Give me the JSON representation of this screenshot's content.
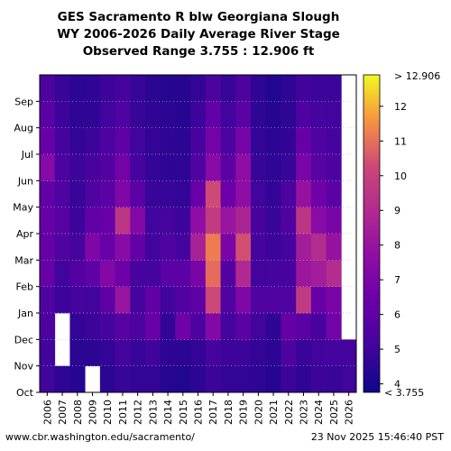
{
  "chart_data": {
    "type": "heatmap",
    "title": "GES Sacramento R blw Georgiana Slough",
    "subtitle": "WY 2006-2026 Daily Average River Stage",
    "range_label": "Observed Range 3.755 : 12.906 ft",
    "x_categories": [
      "2006",
      "2007",
      "2008",
      "2009",
      "2010",
      "2011",
      "2012",
      "2013",
      "2014",
      "2015",
      "2016",
      "2017",
      "2018",
      "2019",
      "2020",
      "2021",
      "2022",
      "2023",
      "2024",
      "2025",
      "2026"
    ],
    "y_ticks": [
      "Oct",
      "Nov",
      "Dec",
      "Jan",
      "Feb",
      "Mar",
      "Apr",
      "May",
      "Jun",
      "Jul",
      "Aug",
      "Sep"
    ],
    "colorbar": {
      "min": 3.755,
      "max": 12.906,
      "ticks": [
        4,
        5,
        6,
        7,
        8,
        9,
        10,
        11,
        12
      ],
      "top_label": "> 12.906",
      "bottom_label": "< 3.755",
      "colormap": "plasma"
    },
    "grid": "dotted horizontal at month starts",
    "monthly_values_oct_to_sep": [
      [
        4.9,
        4.9,
        5.2,
        5.3,
        6.0,
        5.9,
        6.0,
        5.8,
        6.9,
        6.0,
        5.6,
        5.2
      ],
      [
        4.5,
        null,
        null,
        4.8,
        4.9,
        5.3,
        5.5,
        5.3,
        5.2,
        5.0,
        4.8,
        4.7
      ],
      [
        4.3,
        4.4,
        4.6,
        5.0,
        5.4,
        5.0,
        4.8,
        4.7,
        4.8,
        4.6,
        4.5,
        4.4
      ],
      [
        null,
        4.4,
        4.8,
        4.9,
        5.7,
        6.7,
        5.8,
        5.3,
        5.1,
        4.8,
        4.5,
        4.5
      ],
      [
        4.4,
        4.6,
        5.0,
        5.7,
        6.8,
        6.0,
        6.0,
        5.6,
        5.4,
        5.2,
        4.9,
        4.8
      ],
      [
        4.7,
        5.0,
        5.5,
        7.5,
        6.1,
        7.0,
        8.8,
        6.7,
        6.3,
        5.7,
        5.3,
        5.0
      ],
      [
        4.6,
        4.7,
        5.2,
        5.0,
        5.1,
        5.8,
        6.8,
        5.6,
        5.0,
        4.9,
        4.7,
        4.7
      ],
      [
        4.6,
        4.9,
        6.0,
        5.8,
        5.0,
        4.9,
        4.9,
        4.7,
        4.6,
        4.6,
        4.5,
        4.4
      ],
      [
        4.3,
        4.5,
        4.6,
        4.9,
        5.6,
        5.3,
        5.0,
        4.7,
        4.5,
        4.5,
        4.4,
        4.3
      ],
      [
        4.2,
        4.4,
        6.2,
        5.4,
        5.6,
        5.0,
        4.8,
        4.6,
        4.5,
        4.4,
        4.3,
        4.3
      ],
      [
        4.4,
        4.6,
        5.2,
        5.7,
        6.5,
        8.0,
        7.2,
        6.0,
        5.3,
        5.1,
        4.8,
        4.6
      ],
      [
        4.8,
        5.0,
        6.8,
        9.5,
        10.8,
        11.2,
        9.0,
        9.6,
        7.0,
        6.3,
        5.8,
        5.2
      ],
      [
        4.6,
        4.8,
        5.0,
        5.3,
        5.4,
        6.5,
        7.5,
        6.1,
        5.6,
        5.2,
        4.9,
        4.7
      ],
      [
        4.6,
        4.8,
        5.6,
        6.7,
        8.3,
        9.8,
        8.1,
        7.2,
        7.2,
        6.4,
        5.6,
        5.2
      ],
      [
        4.5,
        4.6,
        4.9,
        5.3,
        4.9,
        5.0,
        5.1,
        4.9,
        4.7,
        4.6,
        4.5,
        4.5
      ],
      [
        4.3,
        4.4,
        4.5,
        5.4,
        5.0,
        4.8,
        4.7,
        4.6,
        4.5,
        4.4,
        4.3,
        4.2
      ],
      [
        4.8,
        5.3,
        5.9,
        5.3,
        5.1,
        5.0,
        5.3,
        5.2,
        4.7,
        4.6,
        4.5,
        4.5
      ],
      [
        4.5,
        4.7,
        5.6,
        9.0,
        7.6,
        7.8,
        8.8,
        7.4,
        6.5,
        6.0,
        5.3,
        4.9
      ],
      [
        4.8,
        4.9,
        5.1,
        6.0,
        7.8,
        8.4,
        7.0,
        6.2,
        5.5,
        5.3,
        5.0,
        4.8
      ],
      [
        4.7,
        5.0,
        6.3,
        6.5,
        8.4,
        7.4,
        6.5,
        5.6,
        5.2,
        5.0,
        4.9,
        4.8
      ],
      [
        4.9,
        5.0,
        null,
        null,
        null,
        null,
        null,
        null,
        null,
        null,
        null,
        null
      ]
    ]
  },
  "footer": {
    "source": "www.cbr.washington.edu/sacramento/",
    "timestamp": "23 Nov 2025 15:46:40 PST"
  }
}
